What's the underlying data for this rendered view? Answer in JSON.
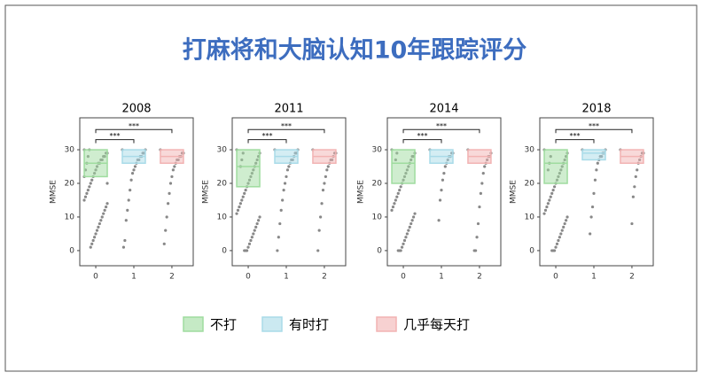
{
  "title": "打麻将和大脑认知10年跟踪评分",
  "legend": [
    {
      "name": "不打",
      "color": "#9fdc9f"
    },
    {
      "name": "有时打",
      "color": "#a9dbe8"
    },
    {
      "name": "几乎每天打",
      "color": "#f2b3b3"
    }
  ],
  "chart_data": [
    {
      "type": "box",
      "title": "2008",
      "ylabel": "MMSE",
      "categories": [
        "0",
        "1",
        "2"
      ],
      "ylim": [
        -4.5,
        39.5
      ],
      "yticks": [
        0,
        10,
        20,
        30
      ],
      "xlim": [
        -0.42,
        2.56
      ],
      "annotations": [
        {
          "text": "***",
          "from": 0,
          "to": 1,
          "y": 33
        },
        {
          "text": "***",
          "from": 0,
          "to": 2,
          "y": 36
        }
      ],
      "series": [
        {
          "color": "#9fdc9f",
          "box": [
            22,
            26,
            30
          ],
          "points": [
            30,
            29,
            29,
            28,
            28,
            27,
            27,
            26,
            26,
            25,
            24,
            23,
            22,
            21,
            20,
            19,
            18,
            17,
            16,
            15,
            14,
            13,
            12,
            11,
            10,
            9,
            8,
            7,
            6,
            5,
            4,
            3,
            2,
            1,
            30,
            28,
            26,
            24,
            22,
            20
          ]
        },
        {
          "color": "#a9dbe8",
          "box": [
            26,
            28,
            30
          ],
          "points": [
            30,
            30,
            29,
            29,
            28,
            28,
            27,
            27,
            26,
            25,
            24,
            23,
            21,
            18,
            15,
            12,
            9,
            3,
            1
          ]
        },
        {
          "color": "#f2b3b3",
          "box": [
            26,
            28,
            30
          ],
          "points": [
            30,
            29,
            29,
            28,
            28,
            27,
            27,
            26,
            25,
            24,
            22,
            20,
            17,
            14,
            10,
            6,
            2
          ]
        }
      ]
    },
    {
      "type": "box",
      "title": "2011",
      "ylabel": "MMSE",
      "categories": [
        "0",
        "1",
        "2"
      ],
      "ylim": [
        -4.5,
        39.5
      ],
      "yticks": [
        0,
        10,
        20,
        30
      ],
      "xlim": [
        -0.42,
        2.56
      ],
      "annotations": [
        {
          "text": "***",
          "from": 0,
          "to": 1,
          "y": 33
        },
        {
          "text": "***",
          "from": 0,
          "to": 2,
          "y": 36
        }
      ],
      "series": [
        {
          "color": "#9fdc9f",
          "box": [
            19,
            25,
            30
          ],
          "points": [
            30,
            29,
            28,
            27,
            26,
            25,
            24,
            23,
            22,
            21,
            20,
            19,
            18,
            17,
            16,
            15,
            14,
            13,
            12,
            11,
            10,
            9,
            8,
            7,
            6,
            5,
            4,
            3,
            2,
            1,
            0,
            0,
            0,
            29,
            27,
            25
          ]
        },
        {
          "color": "#a9dbe8",
          "box": [
            26,
            28,
            30
          ],
          "points": [
            30,
            30,
            29,
            29,
            28,
            27,
            27,
            26,
            25,
            24,
            22,
            20,
            18,
            15,
            12,
            8,
            4,
            0
          ]
        },
        {
          "color": "#f2b3b3",
          "box": [
            26,
            28,
            30
          ],
          "points": [
            30,
            29,
            29,
            28,
            27,
            27,
            26,
            25,
            24,
            22,
            20,
            18,
            14,
            10,
            6,
            0
          ]
        }
      ]
    },
    {
      "type": "box",
      "title": "2014",
      "ylabel": "MMSE",
      "categories": [
        "0",
        "1",
        "2"
      ],
      "ylim": [
        -4.5,
        39.5
      ],
      "yticks": [
        0,
        10,
        20,
        30
      ],
      "xlim": [
        -0.42,
        2.56
      ],
      "annotations": [
        {
          "text": "***",
          "from": 0,
          "to": 1,
          "y": 33
        },
        {
          "text": "***",
          "from": 0,
          "to": 2,
          "y": 36
        }
      ],
      "series": [
        {
          "color": "#9fdc9f",
          "box": [
            20,
            26,
            30
          ],
          "points": [
            30,
            29,
            28,
            28,
            27,
            26,
            25,
            24,
            23,
            22,
            21,
            20,
            19,
            18,
            17,
            16,
            15,
            14,
            13,
            12,
            11,
            10,
            9,
            8,
            7,
            6,
            5,
            4,
            3,
            2,
            1,
            0,
            0,
            0,
            29,
            27
          ]
        },
        {
          "color": "#a9dbe8",
          "box": [
            26,
            28,
            30
          ],
          "points": [
            30,
            29,
            29,
            28,
            28,
            27,
            26,
            25,
            23,
            21,
            18,
            15,
            9
          ]
        },
        {
          "color": "#f2b3b3",
          "box": [
            26,
            28,
            30
          ],
          "points": [
            30,
            29,
            28,
            28,
            27,
            26,
            25,
            23,
            20,
            17,
            13,
            8,
            4,
            0,
            0
          ]
        }
      ]
    },
    {
      "type": "box",
      "title": "2018",
      "ylabel": "MMSE",
      "categories": [
        "0",
        "1",
        "2"
      ],
      "ylim": [
        -4.5,
        39.5
      ],
      "yticks": [
        0,
        10,
        20,
        30
      ],
      "xlim": [
        -0.42,
        2.56
      ],
      "annotations": [
        {
          "text": "***",
          "from": 0,
          "to": 1,
          "y": 33
        },
        {
          "text": "***",
          "from": 0,
          "to": 2,
          "y": 36
        }
      ],
      "series": [
        {
          "color": "#9fdc9f",
          "box": [
            20,
            26,
            30
          ],
          "points": [
            30,
            29,
            28,
            27,
            26,
            25,
            24,
            23,
            22,
            21,
            20,
            19,
            18,
            17,
            16,
            15,
            14,
            13,
            12,
            11,
            10,
            9,
            8,
            7,
            6,
            5,
            4,
            3,
            2,
            1,
            0,
            0,
            0,
            28,
            26,
            24
          ]
        },
        {
          "color": "#a9dbe8",
          "box": [
            27,
            29,
            30
          ],
          "points": [
            30,
            30,
            29,
            29,
            28,
            28,
            27,
            26,
            24,
            21,
            17,
            13,
            10,
            5
          ]
        },
        {
          "color": "#f2b3b3",
          "box": [
            26,
            28,
            30
          ],
          "points": [
            30,
            29,
            29,
            28,
            27,
            26,
            24,
            22,
            19,
            16,
            8
          ]
        }
      ]
    }
  ]
}
